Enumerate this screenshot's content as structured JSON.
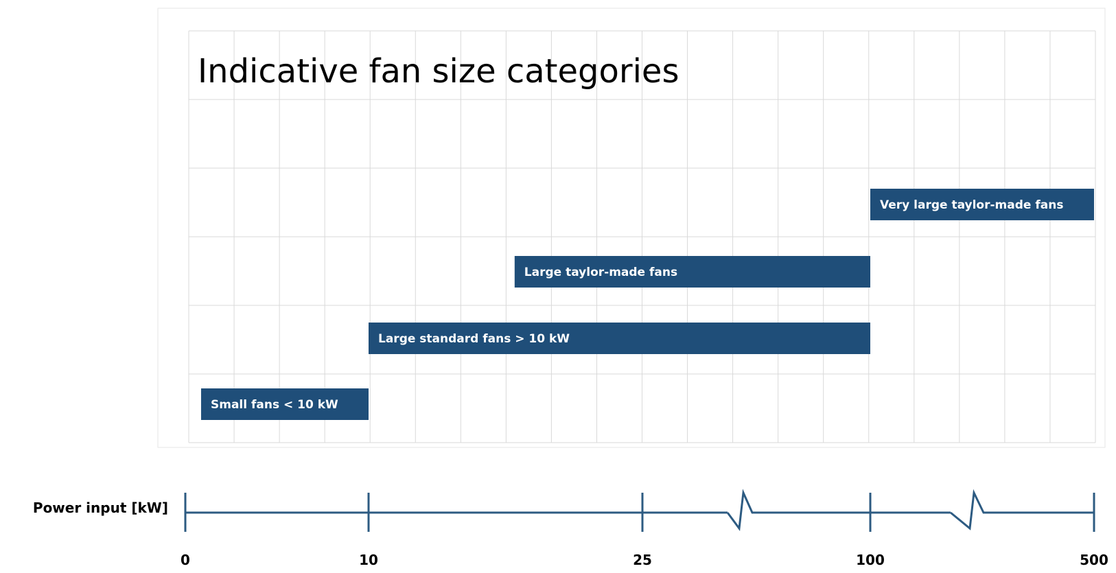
{
  "chart_data": {
    "type": "bar",
    "title": "Indicative fan size categories",
    "xlabel": "Power input [kW]",
    "ylabel": "",
    "x_ticks": [
      "0",
      "10",
      "25",
      "100",
      "500"
    ],
    "axis_breaks": [
      [
        25,
        100
      ],
      [
        100,
        500
      ]
    ],
    "grid": true,
    "series": [
      {
        "name": "Small fans < 10 kW",
        "start": 0,
        "end": 10
      },
      {
        "name": "Large standard  fans > 10 kW",
        "start": 10,
        "end": 100
      },
      {
        "name": "Large taylor-made  fans",
        "start": 18,
        "end": 100
      },
      {
        "name": "Very large taylor-made fans",
        "start": 100,
        "end": 500
      }
    ],
    "colors": {
      "bar": "#1f4e79",
      "axis": "#2d5b82",
      "grid": "#d9d9d9"
    }
  }
}
